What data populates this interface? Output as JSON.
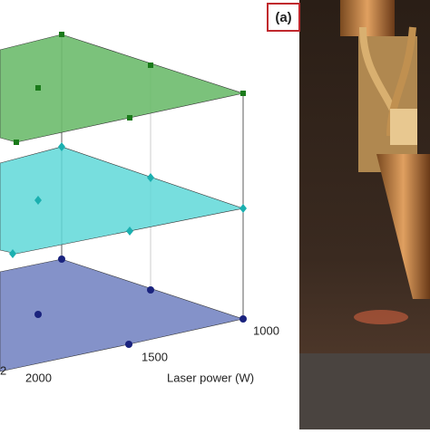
{
  "panel_label": "(a)",
  "axis": {
    "title": "Laser power (W)",
    "ticks": [
      "1000",
      "1500",
      "2000"
    ]
  },
  "cut_label": "2"
}
